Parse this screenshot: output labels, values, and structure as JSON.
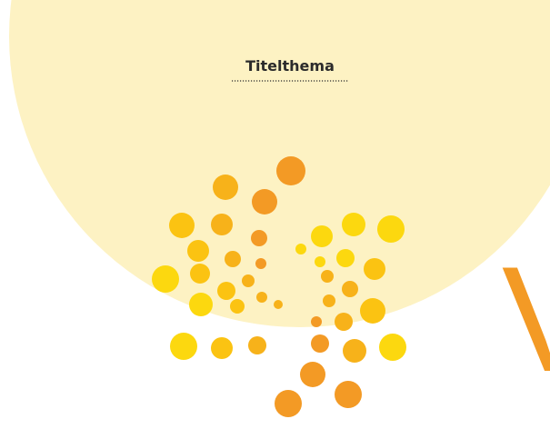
{
  "header": {
    "title": "Titelthema"
  },
  "headline": "V"
}
